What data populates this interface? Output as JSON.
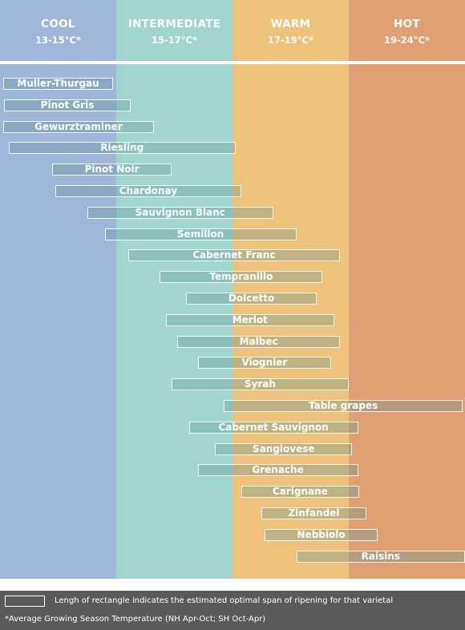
{
  "chart_data": {
    "type": "range-bar",
    "zones": [
      {
        "name": "COOL",
        "temp": "13-15°C*",
        "color": "#9fb5d9"
      },
      {
        "name": "INTERMEDIATE",
        "temp": "15-17°C*",
        "color": "#a0d5d0"
      },
      {
        "name": "WARM",
        "temp": "17-19°C*",
        "color": "#eec27a"
      },
      {
        "name": "HOT",
        "temp": "19-24°C*",
        "color": "#e0a074"
      }
    ],
    "temp_range": [
      13,
      24
    ],
    "varietals": [
      {
        "name": "Muller-Thurgau",
        "start": 13.05,
        "end": 14.95
      },
      {
        "name": "Pinot Gris",
        "start": 13.07,
        "end": 15.25
      },
      {
        "name": "Gewurztraminer",
        "start": 13.05,
        "end": 15.65
      },
      {
        "name": "Riesling",
        "start": 13.15,
        "end": 17.05
      },
      {
        "name": "Pinot Noir",
        "start": 13.9,
        "end": 15.95
      },
      {
        "name": "Chardonay",
        "start": 13.95,
        "end": 17.15
      },
      {
        "name": "Sauvignon Blanc",
        "start": 14.5,
        "end": 17.7
      },
      {
        "name": "Semillon",
        "start": 14.8,
        "end": 18.1
      },
      {
        "name": "Cabernet Franc",
        "start": 15.2,
        "end": 18.85
      },
      {
        "name": "Tempranillo",
        "start": 15.75,
        "end": 18.55
      },
      {
        "name": "Dolcetto",
        "start": 16.2,
        "end": 18.45
      },
      {
        "name": "Merlot",
        "start": 15.85,
        "end": 18.75
      },
      {
        "name": "Malbec",
        "start": 16.05,
        "end": 18.85
      },
      {
        "name": "Viognier",
        "start": 16.4,
        "end": 18.7
      },
      {
        "name": "Syrah",
        "start": 15.95,
        "end": 19.0
      },
      {
        "name": "Table grapes",
        "start": 16.85,
        "end": 23.9
      },
      {
        "name": "Cabernet Sauvignon",
        "start": 16.25,
        "end": 19.4
      },
      {
        "name": "Sangiovese",
        "start": 16.7,
        "end": 19.15
      },
      {
        "name": "Grenache",
        "start": 16.4,
        "end": 19.4
      },
      {
        "name": "Carignane",
        "start": 17.15,
        "end": 19.45
      },
      {
        "name": "Zinfandel",
        "start": 17.5,
        "end": 19.75
      },
      {
        "name": "Nebbiolo",
        "start": 17.55,
        "end": 20.25
      },
      {
        "name": "Raisins",
        "start": 18.1,
        "end": 24.0
      }
    ],
    "legend": "Lengh of rectangle indicates the estimated optimal span of ripening for that varietal",
    "footnote": "*Average Growing Season Temperature (NH Apr-Oct; SH Oct-Apr)"
  }
}
